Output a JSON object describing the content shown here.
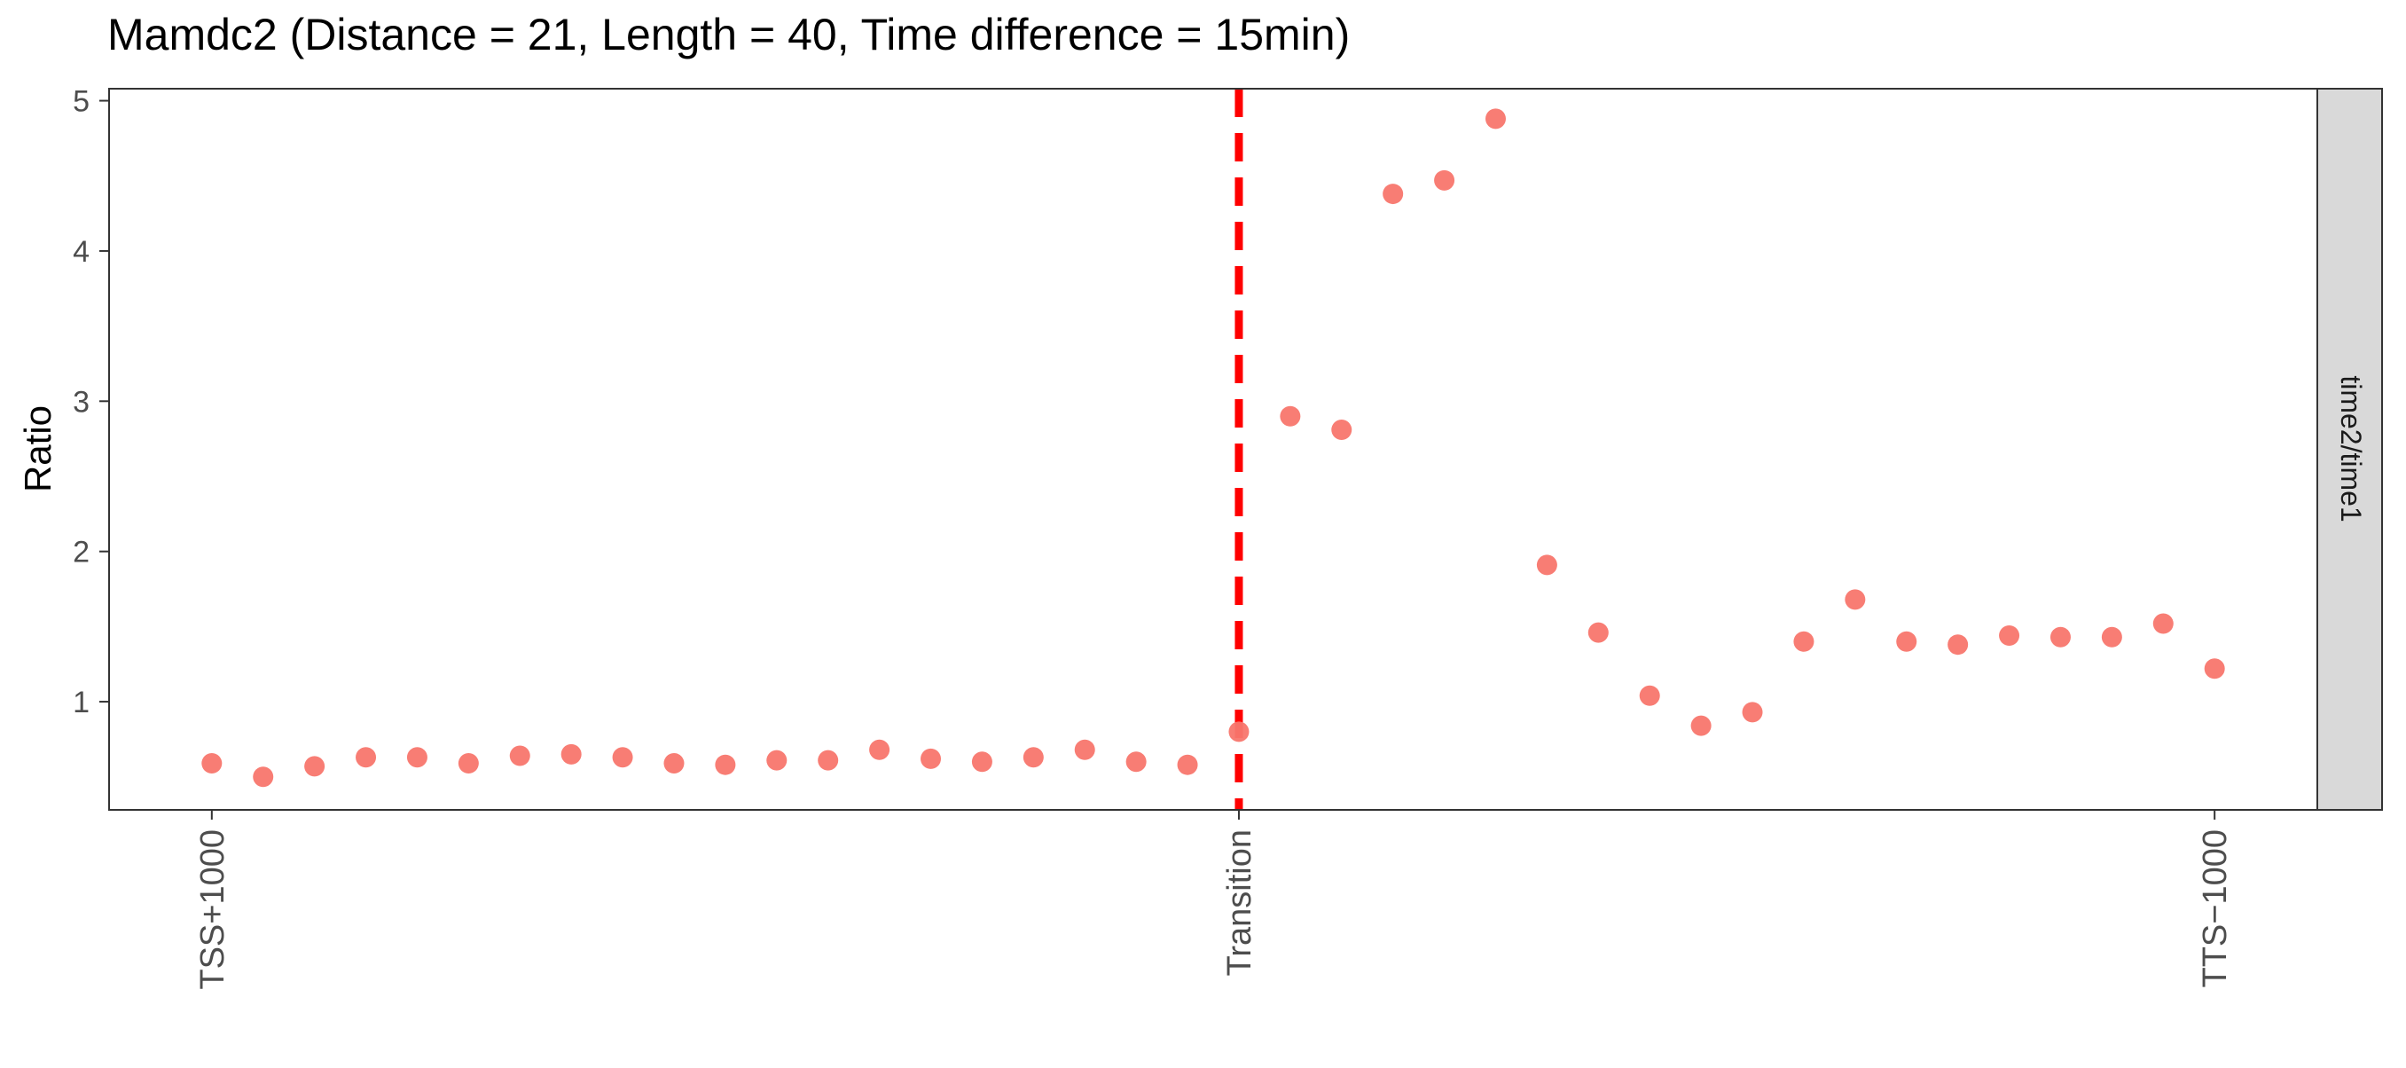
{
  "chart_data": {
    "type": "scatter",
    "title": "Mamdc2 (Distance = 21, Length = 40, Time difference = 15min)",
    "xlabel": "",
    "ylabel": "Ratio",
    "facet_label": "time2/time1",
    "x_ticks": [
      {
        "x": 1,
        "label": "TSS+1000"
      },
      {
        "x": 21,
        "label": "Transition"
      },
      {
        "x": 40,
        "label": "TTS−1000"
      }
    ],
    "y_ticks": [
      1,
      2,
      3,
      4,
      5
    ],
    "xlim": [
      -1,
      42
    ],
    "ylim": [
      0.28,
      5.08
    ],
    "transition_x": 21,
    "grid": false,
    "point_color": "#F8766D",
    "transition_line_color": "#FF0000",
    "series": [
      {
        "x": [
          1,
          2,
          3,
          4,
          5,
          6,
          7,
          8,
          9,
          10,
          11,
          12,
          13,
          14,
          15,
          16,
          17,
          18,
          19,
          20,
          21,
          22,
          23,
          24,
          25,
          26,
          27,
          28,
          29,
          30,
          31,
          32,
          33,
          34,
          35,
          36,
          37,
          38,
          39,
          40
        ],
        "values": [
          0.59,
          0.5,
          0.57,
          0.63,
          0.63,
          0.59,
          0.64,
          0.65,
          0.63,
          0.59,
          0.58,
          0.61,
          0.61,
          0.68,
          0.62,
          0.6,
          0.63,
          0.68,
          0.6,
          0.58,
          0.8,
          2.9,
          2.81,
          4.38,
          4.47,
          4.88,
          1.91,
          1.46,
          1.04,
          0.84,
          0.93,
          1.4,
          1.68,
          1.4,
          1.38,
          1.44,
          1.43,
          1.43,
          1.52,
          1.22
        ]
      }
    ]
  }
}
